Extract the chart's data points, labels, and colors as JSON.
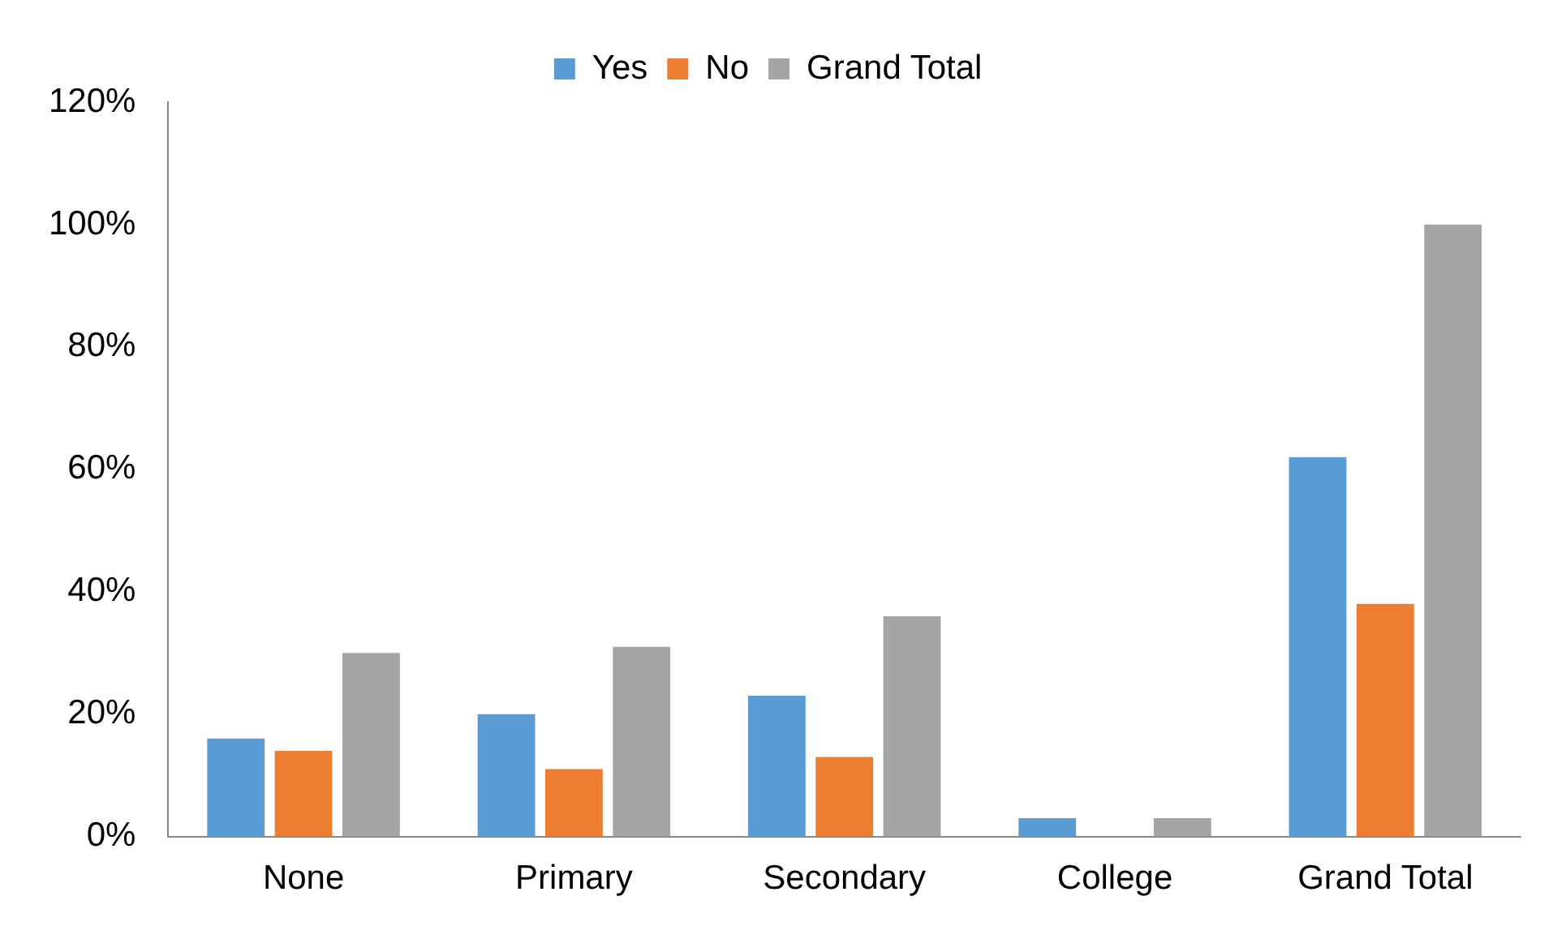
{
  "chart_data": {
    "type": "bar",
    "categories": [
      "None",
      "Primary",
      "Secondary",
      "College",
      "Grand Total"
    ],
    "series": [
      {
        "name": "Yes",
        "color": "#5b9bd5",
        "values": [
          16,
          20,
          23,
          3,
          62
        ]
      },
      {
        "name": "No",
        "color": "#ed7d31",
        "values": [
          14,
          11,
          13,
          0,
          38
        ]
      },
      {
        "name": "Grand Total",
        "color": "#a5a5a5",
        "values": [
          30,
          31,
          36,
          3,
          100
        ]
      }
    ],
    "ylim": [
      0,
      120
    ],
    "yticks": [
      {
        "value": 0,
        "label": "0%"
      },
      {
        "value": 20,
        "label": "20%"
      },
      {
        "value": 40,
        "label": "40%"
      },
      {
        "value": 60,
        "label": "60%"
      },
      {
        "value": 80,
        "label": "80%"
      },
      {
        "value": 100,
        "label": "100%"
      },
      {
        "value": 120,
        "label": "120%"
      }
    ],
    "grid": false,
    "legend": "top"
  }
}
